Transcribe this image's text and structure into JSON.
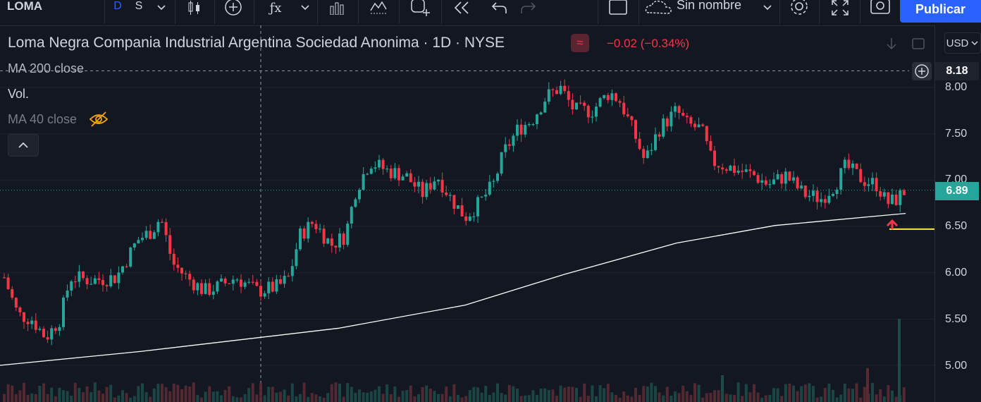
{
  "toolbar": {
    "symbol": "LOMA",
    "interval_d": "D",
    "interval_s": "S",
    "layout_name": "Sin nombre",
    "publish_label": "Publicar",
    "icons": [
      "chevron-down-icon",
      "candles-icon",
      "add-circle-icon",
      "indicators-icon",
      "chevron-down-icon",
      "templates-icon",
      "alert-icon",
      "replay-icon",
      "undo-icon",
      "redo-icon",
      "layout-icon",
      "cloud-icon",
      "gear-icon",
      "fullscreen-icon",
      "camera-icon"
    ]
  },
  "legend": {
    "title": "Loma Negra Compania Industrial Argentina Sociedad Anonima · 1D · NYSE",
    "change": "−0.02 (−0.34%)",
    "badge_icon": "≈",
    "studies": {
      "ma200": "MA 200 close",
      "vol": "Vol.",
      "ma40": "MA 40 close"
    }
  },
  "price_axis": {
    "currency": "USD",
    "ticks": [
      "8.00",
      "7.50",
      "7.00",
      "6.50",
      "6.00",
      "5.50",
      "5.00"
    ],
    "high_label": "8.18",
    "last_label": "6.89"
  },
  "colors": {
    "up": "#26a69a",
    "down": "#f23645",
    "ma200": "#ffffff",
    "horizontal_line": "#ffeb3b",
    "arrow": "#f23645",
    "background": "#131722"
  },
  "chart_data": {
    "type": "candlestick",
    "y_range": [
      4.6,
      8.55
    ],
    "series": [
      {
        "name": "MA 200 close",
        "type": "line"
      },
      {
        "name": "Vol.",
        "type": "bar"
      }
    ],
    "ma200_approx": [
      [
        0,
        5.0
      ],
      [
        200,
        5.15
      ],
      [
        480,
        5.4
      ],
      [
        660,
        5.65
      ],
      [
        800,
        5.98
      ],
      [
        960,
        6.32
      ],
      [
        1100,
        6.51
      ],
      [
        1285,
        6.64
      ]
    ],
    "price_lines": {
      "high": 8.18,
      "last": 6.89,
      "support": 6.47
    }
  }
}
